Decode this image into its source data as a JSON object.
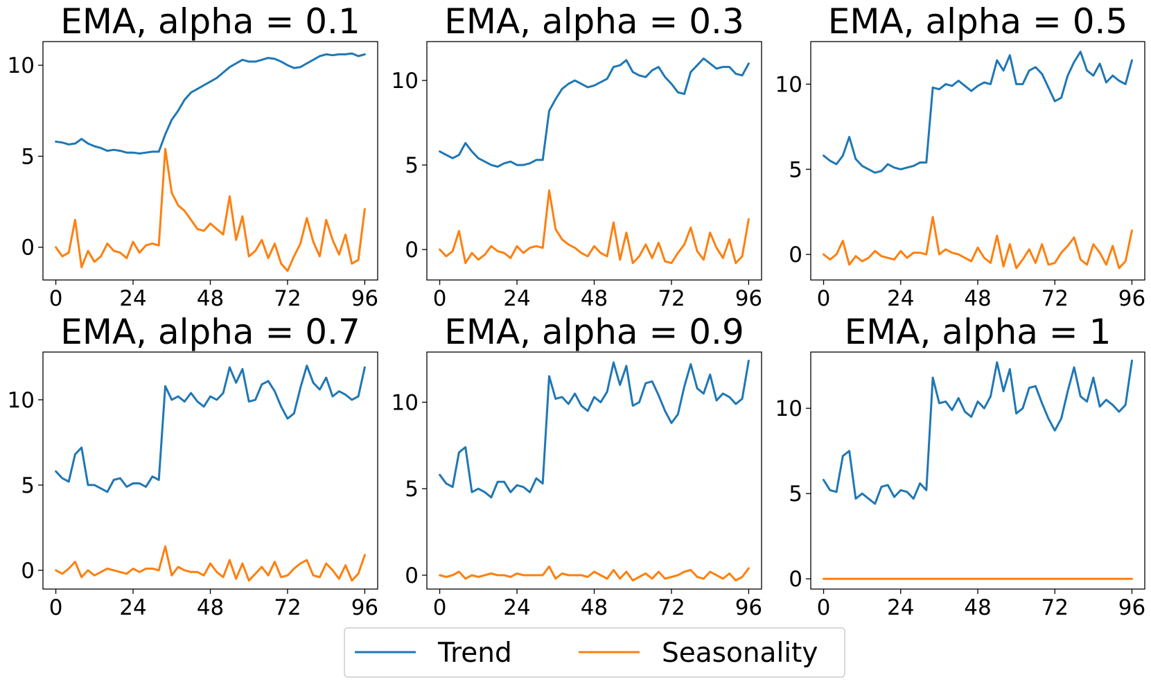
{
  "chart_data": [
    {
      "type": "line",
      "title": "EMA, alpha = 0.1",
      "x": [
        0,
        2,
        4,
        6,
        8,
        10,
        12,
        14,
        16,
        18,
        20,
        22,
        24,
        26,
        28,
        30,
        32,
        34,
        36,
        38,
        40,
        42,
        44,
        46,
        48,
        50,
        52,
        54,
        56,
        58,
        60,
        62,
        64,
        66,
        68,
        70,
        72,
        74,
        76,
        78,
        80,
        82,
        84,
        86,
        88,
        90,
        92,
        94,
        96
      ],
      "xticks": [
        0,
        24,
        48,
        72,
        96
      ],
      "yticks": [
        0,
        5,
        10
      ],
      "xlim": [
        -4,
        100
      ],
      "ylim": [
        -1.8,
        11.3
      ],
      "series": [
        {
          "name": "Trend",
          "color": "#1f77b4",
          "values": [
            5.8,
            5.75,
            5.65,
            5.7,
            5.95,
            5.7,
            5.55,
            5.45,
            5.3,
            5.35,
            5.3,
            5.2,
            5.2,
            5.15,
            5.2,
            5.25,
            5.25,
            6.2,
            7.0,
            7.5,
            8.1,
            8.5,
            8.7,
            8.9,
            9.1,
            9.3,
            9.6,
            9.9,
            10.1,
            10.3,
            10.2,
            10.2,
            10.3,
            10.4,
            10.35,
            10.2,
            10.0,
            9.85,
            9.9,
            10.1,
            10.3,
            10.5,
            10.6,
            10.55,
            10.6,
            10.6,
            10.65,
            10.5,
            10.6
          ]
        },
        {
          "name": "Seasonality",
          "color": "#ff7f0e",
          "values": [
            0.0,
            -0.5,
            -0.3,
            1.5,
            -1.1,
            -0.2,
            -0.8,
            -0.5,
            0.2,
            -0.2,
            -0.3,
            -0.6,
            0.3,
            -0.3,
            0.1,
            0.2,
            0.1,
            5.4,
            3.0,
            2.3,
            2.0,
            1.5,
            1.0,
            0.9,
            1.3,
            1.0,
            0.7,
            2.8,
            0.4,
            1.7,
            -0.5,
            -0.2,
            0.4,
            -0.6,
            0.2,
            -0.9,
            -1.3,
            -0.5,
            0.2,
            1.6,
            0.3,
            -0.5,
            1.5,
            0.4,
            -0.4,
            0.7,
            -0.9,
            -0.7,
            2.1
          ]
        }
      ]
    },
    {
      "type": "line",
      "title": "EMA, alpha = 0.3",
      "x": [
        0,
        2,
        4,
        6,
        8,
        10,
        12,
        14,
        16,
        18,
        20,
        22,
        24,
        26,
        28,
        30,
        32,
        34,
        36,
        38,
        40,
        42,
        44,
        46,
        48,
        50,
        52,
        54,
        56,
        58,
        60,
        62,
        64,
        66,
        68,
        70,
        72,
        74,
        76,
        78,
        80,
        82,
        84,
        86,
        88,
        90,
        92,
        94,
        96
      ],
      "xticks": [
        0,
        24,
        48,
        72,
        96
      ],
      "yticks": [
        0,
        5,
        10
      ],
      "xlim": [
        -4,
        100
      ],
      "ylim": [
        -1.8,
        12.3
      ],
      "series": [
        {
          "name": "Trend",
          "color": "#1f77b4",
          "values": [
            5.8,
            5.6,
            5.4,
            5.6,
            6.3,
            5.8,
            5.4,
            5.2,
            5.0,
            4.9,
            5.1,
            5.2,
            5.0,
            5.0,
            5.1,
            5.3,
            5.3,
            8.2,
            8.9,
            9.5,
            9.8,
            10.0,
            9.8,
            9.6,
            9.7,
            9.9,
            10.1,
            10.8,
            10.9,
            11.2,
            10.5,
            10.3,
            10.2,
            10.6,
            10.8,
            10.2,
            9.8,
            9.3,
            9.2,
            10.5,
            10.9,
            11.3,
            11.0,
            10.7,
            10.8,
            10.8,
            10.4,
            10.3,
            11.0
          ]
        },
        {
          "name": "Seasonality",
          "color": "#ff7f0e",
          "values": [
            0.0,
            -0.4,
            -0.1,
            1.1,
            -0.8,
            -0.2,
            -0.6,
            -0.3,
            0.2,
            -0.1,
            -0.2,
            -0.5,
            0.2,
            -0.2,
            0.1,
            0.2,
            0.1,
            3.5,
            1.2,
            0.6,
            0.3,
            0.1,
            -0.2,
            -0.4,
            0.2,
            -0.2,
            -0.4,
            1.6,
            -0.6,
            1.0,
            -0.8,
            -0.4,
            0.3,
            -0.5,
            0.4,
            -0.7,
            -0.8,
            -0.2,
            0.3,
            1.3,
            -0.1,
            -0.6,
            1.0,
            0.1,
            -0.5,
            0.6,
            -0.8,
            -0.4,
            1.8
          ]
        }
      ]
    },
    {
      "type": "line",
      "title": "EMA, alpha = 0.5",
      "x": [
        0,
        2,
        4,
        6,
        8,
        10,
        12,
        14,
        16,
        18,
        20,
        22,
        24,
        26,
        28,
        30,
        32,
        34,
        36,
        38,
        40,
        42,
        44,
        46,
        48,
        50,
        52,
        54,
        56,
        58,
        60,
        62,
        64,
        66,
        68,
        70,
        72,
        74,
        76,
        78,
        80,
        82,
        84,
        86,
        88,
        90,
        92,
        94,
        96
      ],
      "xticks": [
        0,
        24,
        48,
        72,
        96
      ],
      "yticks": [
        0,
        5,
        10
      ],
      "xlim": [
        -4,
        100
      ],
      "ylim": [
        -1.5,
        12.5
      ],
      "series": [
        {
          "name": "Trend",
          "color": "#1f77b4",
          "values": [
            5.8,
            5.5,
            5.3,
            5.8,
            6.9,
            5.6,
            5.2,
            5.0,
            4.8,
            4.9,
            5.3,
            5.1,
            5.0,
            5.1,
            5.2,
            5.4,
            5.4,
            9.8,
            9.7,
            10.0,
            9.9,
            10.2,
            9.9,
            9.6,
            9.9,
            10.1,
            10.0,
            11.4,
            10.8,
            11.7,
            10.0,
            10.0,
            10.8,
            11.0,
            10.6,
            9.8,
            9.0,
            9.2,
            10.5,
            11.3,
            11.9,
            10.8,
            10.5,
            11.2,
            10.1,
            10.5,
            10.2,
            10.0,
            11.4
          ]
        },
        {
          "name": "Seasonality",
          "color": "#ff7f0e",
          "values": [
            0.0,
            -0.3,
            0.0,
            0.8,
            -0.6,
            -0.1,
            -0.4,
            -0.2,
            0.2,
            -0.1,
            -0.2,
            -0.3,
            0.2,
            -0.2,
            0.1,
            0.1,
            0.0,
            2.2,
            0.0,
            0.3,
            0.1,
            0.0,
            -0.2,
            -0.4,
            0.4,
            -0.2,
            -0.5,
            1.1,
            -0.7,
            0.6,
            -0.8,
            -0.3,
            0.3,
            -0.5,
            0.6,
            -0.6,
            -0.5,
            0.1,
            0.5,
            1.0,
            -0.3,
            -0.6,
            0.6,
            0.1,
            -0.6,
            0.5,
            -0.8,
            -0.4,
            1.4
          ]
        }
      ]
    },
    {
      "type": "line",
      "title": "EMA, alpha = 0.7",
      "x": [
        0,
        2,
        4,
        6,
        8,
        10,
        12,
        14,
        16,
        18,
        20,
        22,
        24,
        26,
        28,
        30,
        32,
        34,
        36,
        38,
        40,
        42,
        44,
        46,
        48,
        50,
        52,
        54,
        56,
        58,
        60,
        62,
        64,
        66,
        68,
        70,
        72,
        74,
        76,
        78,
        80,
        82,
        84,
        86,
        88,
        90,
        92,
        94,
        96
      ],
      "xticks": [
        0,
        24,
        48,
        72,
        96
      ],
      "yticks": [
        0,
        5,
        10
      ],
      "xlim": [
        -4,
        100
      ],
      "ylim": [
        -1.1,
        12.8
      ],
      "series": [
        {
          "name": "Trend",
          "color": "#1f77b4",
          "values": [
            5.8,
            5.4,
            5.2,
            6.8,
            7.2,
            5.0,
            5.0,
            4.8,
            4.6,
            5.3,
            5.4,
            4.9,
            5.1,
            5.1,
            4.9,
            5.5,
            5.3,
            10.8,
            10.0,
            10.2,
            9.9,
            10.4,
            9.9,
            9.6,
            10.2,
            10.0,
            10.4,
            11.9,
            11.0,
            11.8,
            9.9,
            10.0,
            10.9,
            11.1,
            10.5,
            9.6,
            8.9,
            9.2,
            10.7,
            12.0,
            11.0,
            10.6,
            11.3,
            10.2,
            10.5,
            10.3,
            10.0,
            10.2,
            11.9
          ]
        },
        {
          "name": "Seasonality",
          "color": "#ff7f0e",
          "values": [
            0.0,
            -0.2,
            0.1,
            0.5,
            -0.4,
            0.0,
            -0.3,
            -0.1,
            0.1,
            0.0,
            -0.1,
            -0.2,
            0.1,
            -0.1,
            0.1,
            0.1,
            0.0,
            1.4,
            -0.3,
            0.2,
            0.0,
            -0.1,
            -0.1,
            -0.3,
            0.4,
            -0.1,
            -0.4,
            0.6,
            -0.5,
            0.4,
            -0.6,
            -0.2,
            0.2,
            -0.3,
            0.5,
            -0.4,
            -0.3,
            0.1,
            0.4,
            0.6,
            -0.3,
            -0.4,
            0.4,
            0.0,
            -0.5,
            0.3,
            -0.6,
            -0.2,
            0.9
          ]
        }
      ]
    },
    {
      "type": "line",
      "title": "EMA, alpha = 0.9",
      "x": [
        0,
        2,
        4,
        6,
        8,
        10,
        12,
        14,
        16,
        18,
        20,
        22,
        24,
        26,
        28,
        30,
        32,
        34,
        36,
        38,
        40,
        42,
        44,
        46,
        48,
        50,
        52,
        54,
        56,
        58,
        60,
        62,
        64,
        66,
        68,
        70,
        72,
        74,
        76,
        78,
        80,
        82,
        84,
        86,
        88,
        90,
        92,
        94,
        96
      ],
      "xticks": [
        0,
        24,
        48,
        72,
        96
      ],
      "yticks": [
        0,
        5,
        10
      ],
      "xlim": [
        -4,
        100
      ],
      "ylim": [
        -0.8,
        12.9
      ],
      "series": [
        {
          "name": "Trend",
          "color": "#1f77b4",
          "values": [
            5.8,
            5.3,
            5.1,
            7.1,
            7.4,
            4.8,
            5.0,
            4.8,
            4.5,
            5.4,
            5.4,
            4.8,
            5.2,
            5.1,
            4.8,
            5.6,
            5.3,
            11.5,
            10.2,
            10.3,
            9.9,
            10.5,
            9.8,
            9.5,
            10.3,
            10.0,
            10.6,
            12.3,
            11.0,
            12.1,
            9.8,
            10.0,
            11.1,
            11.2,
            10.4,
            9.5,
            8.8,
            9.3,
            10.9,
            12.2,
            10.8,
            10.5,
            11.6,
            10.1,
            10.5,
            10.3,
            9.9,
            10.2,
            12.4
          ]
        },
        {
          "name": "Seasonality",
          "color": "#ff7f0e",
          "values": [
            0.0,
            -0.1,
            0.0,
            0.2,
            -0.2,
            0.0,
            -0.1,
            0.0,
            0.1,
            0.0,
            0.0,
            -0.1,
            0.1,
            0.0,
            0.0,
            0.0,
            0.0,
            0.5,
            -0.2,
            0.1,
            0.0,
            0.0,
            0.0,
            -0.1,
            0.2,
            0.0,
            -0.2,
            0.3,
            -0.2,
            0.2,
            -0.3,
            -0.1,
            0.1,
            -0.2,
            0.2,
            -0.2,
            -0.1,
            0.0,
            0.2,
            0.3,
            -0.1,
            -0.2,
            0.2,
            0.0,
            -0.2,
            0.1,
            -0.3,
            -0.1,
            0.4
          ]
        }
      ]
    },
    {
      "type": "line",
      "title": "EMA, alpha = 1",
      "x": [
        0,
        2,
        4,
        6,
        8,
        10,
        12,
        14,
        16,
        18,
        20,
        22,
        24,
        26,
        28,
        30,
        32,
        34,
        36,
        38,
        40,
        42,
        44,
        46,
        48,
        50,
        52,
        54,
        56,
        58,
        60,
        62,
        64,
        66,
        68,
        70,
        72,
        74,
        76,
        78,
        80,
        82,
        84,
        86,
        88,
        90,
        92,
        94,
        96
      ],
      "xticks": [
        0,
        24,
        48,
        72,
        96
      ],
      "yticks": [
        0,
        5,
        10
      ],
      "xlim": [
        -4,
        100
      ],
      "ylim": [
        -0.6,
        13.3
      ],
      "series": [
        {
          "name": "Trend",
          "color": "#1f77b4",
          "values": [
            5.8,
            5.2,
            5.1,
            7.2,
            7.5,
            4.7,
            5.0,
            4.7,
            4.4,
            5.4,
            5.5,
            4.8,
            5.2,
            5.1,
            4.7,
            5.6,
            5.2,
            11.8,
            10.3,
            10.4,
            9.9,
            10.6,
            9.8,
            9.5,
            10.4,
            10.0,
            10.7,
            12.7,
            11.0,
            12.3,
            9.7,
            10.0,
            11.2,
            11.3,
            10.3,
            9.4,
            8.7,
            9.4,
            11.0,
            12.4,
            10.7,
            10.4,
            11.8,
            10.1,
            10.5,
            10.2,
            9.8,
            10.2,
            12.8
          ]
        },
        {
          "name": "Seasonality",
          "color": "#ff7f0e",
          "values": [
            0,
            0,
            0,
            0,
            0,
            0,
            0,
            0,
            0,
            0,
            0,
            0,
            0,
            0,
            0,
            0,
            0,
            0,
            0,
            0,
            0,
            0,
            0,
            0,
            0,
            0,
            0,
            0,
            0,
            0,
            0,
            0,
            0,
            0,
            0,
            0,
            0,
            0,
            0,
            0,
            0,
            0,
            0,
            0,
            0,
            0,
            0,
            0,
            0
          ]
        }
      ]
    }
  ],
  "legend": {
    "items": [
      {
        "label": "Trend",
        "color": "#1f77b4"
      },
      {
        "label": "Seasonality",
        "color": "#ff7f0e"
      }
    ]
  }
}
